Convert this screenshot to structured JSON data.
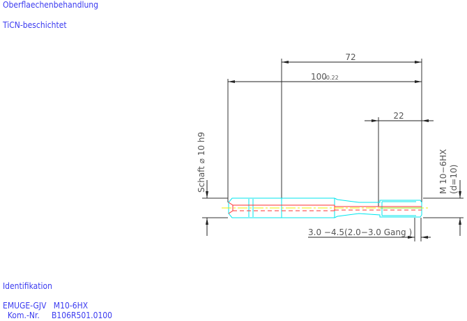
{
  "surface": {
    "heading": "Oberflaechenbehandlung",
    "value": "TiCN-beschichtet"
  },
  "drawing": {
    "dim_72": "72",
    "dim_100": "100",
    "dim_100_tol": "-0.22",
    "dim_22": "22",
    "shank_label": "Schaft ⌀ 10  h9",
    "thread_label": "M 10−6HX",
    "thread_d": "(d=10)",
    "chamfer_label": "3.0 −4.5(2.0−3.0 Gang  )",
    "colors": {
      "outline": "#00e5ee",
      "hidden": "#ff3030",
      "centerline": "#f0f000",
      "dimension": "#222222",
      "text": "#3b3bf0"
    }
  },
  "identification": {
    "heading": "Identifikation",
    "brand_line": "EMUGE-GJV   M10-6HX",
    "kom_line": "  Kom.-Nr.     B106R501.0100"
  }
}
